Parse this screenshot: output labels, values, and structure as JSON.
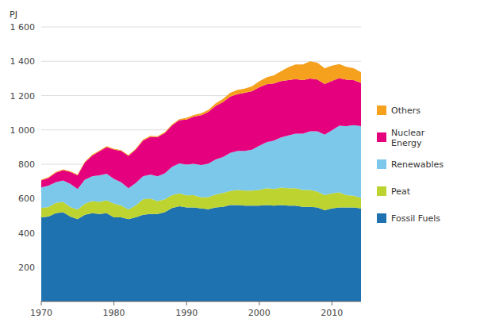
{
  "chart_data": {
    "type": "area",
    "stacked": true,
    "ylabel": "PJ",
    "x": [
      1970,
      1971,
      1972,
      1973,
      1974,
      1975,
      1976,
      1977,
      1978,
      1979,
      1980,
      1981,
      1982,
      1983,
      1984,
      1985,
      1986,
      1987,
      1988,
      1989,
      1990,
      1991,
      1992,
      1993,
      1994,
      1995,
      1996,
      1997,
      1998,
      1999,
      2000,
      2001,
      2002,
      2003,
      2004,
      2005,
      2006,
      2007,
      2008,
      2009,
      2010,
      2011,
      2012,
      2013,
      2014
    ],
    "series": [
      {
        "name": "Fossil Fuels",
        "color": "#1f72b0",
        "values": [
          490,
          495,
          515,
          520,
          495,
          480,
          505,
          515,
          510,
          515,
          490,
          490,
          480,
          490,
          505,
          510,
          510,
          520,
          545,
          555,
          548,
          548,
          542,
          538,
          548,
          552,
          562,
          562,
          558,
          558,
          558,
          562,
          558,
          562,
          558,
          558,
          552,
          552,
          548,
          532,
          542,
          548,
          548,
          548,
          542
        ]
      },
      {
        "name": "Peat",
        "color": "#bdd330",
        "values": [
          55,
          55,
          60,
          60,
          55,
          55,
          65,
          70,
          70,
          75,
          80,
          70,
          55,
          70,
          90,
          90,
          75,
          75,
          75,
          75,
          70,
          72,
          65,
          70,
          75,
          80,
          82,
          88,
          88,
          88,
          92,
          98,
          98,
          102,
          102,
          102,
          98,
          98,
          92,
          88,
          88,
          88,
          72,
          68,
          62
        ]
      },
      {
        "name": "Renewables",
        "color": "#7cc8ea",
        "values": [
          120,
          125,
          120,
          125,
          135,
          120,
          140,
          145,
          155,
          155,
          145,
          135,
          125,
          130,
          135,
          140,
          145,
          152,
          165,
          175,
          180,
          182,
          188,
          195,
          205,
          210,
          222,
          228,
          232,
          238,
          258,
          268,
          282,
          292,
          308,
          318,
          328,
          342,
          352,
          352,
          368,
          388,
          402,
          412,
          418
        ]
      },
      {
        "name": "Nuclear\nEnergy",
        "color": "#e5007d",
        "values": [
          40,
          45,
          55,
          60,
          70,
          80,
          100,
          120,
          140,
          155,
          170,
          182,
          188,
          195,
          208,
          220,
          228,
          235,
          242,
          252,
          262,
          275,
          290,
          302,
          312,
          320,
          328,
          330,
          338,
          342,
          340,
          338,
          332,
          328,
          322,
          318,
          312,
          308,
          302,
          295,
          288,
          278,
          270,
          262,
          252
        ]
      },
      {
        "name": "Others",
        "color": "#f5a11e",
        "values": [
          5,
          5,
          5,
          5,
          5,
          5,
          5,
          5,
          5,
          5,
          5,
          5,
          5,
          5,
          5,
          5,
          5,
          5,
          5,
          5,
          10,
          10,
          12,
          12,
          15,
          18,
          22,
          25,
          25,
          28,
          35,
          40,
          48,
          58,
          75,
          85,
          92,
          100,
          98,
          92,
          88,
          82,
          76,
          70,
          62
        ]
      }
    ],
    "ylim": [
      0,
      1600
    ],
    "yticks": [
      {
        "value": 0,
        "label": null
      },
      200,
      400,
      600,
      800,
      {
        "value": 1000,
        "label": "1 000"
      },
      {
        "value": 1200,
        "label": "1 200"
      },
      {
        "value": 1400,
        "label": "1 400"
      },
      {
        "value": 1600,
        "label": "1 600"
      }
    ],
    "xlim": [
      1970,
      2014
    ],
    "xticks": [
      1970,
      1980,
      1990,
      2000,
      2010
    ],
    "grid": true,
    "legend": "right"
  }
}
